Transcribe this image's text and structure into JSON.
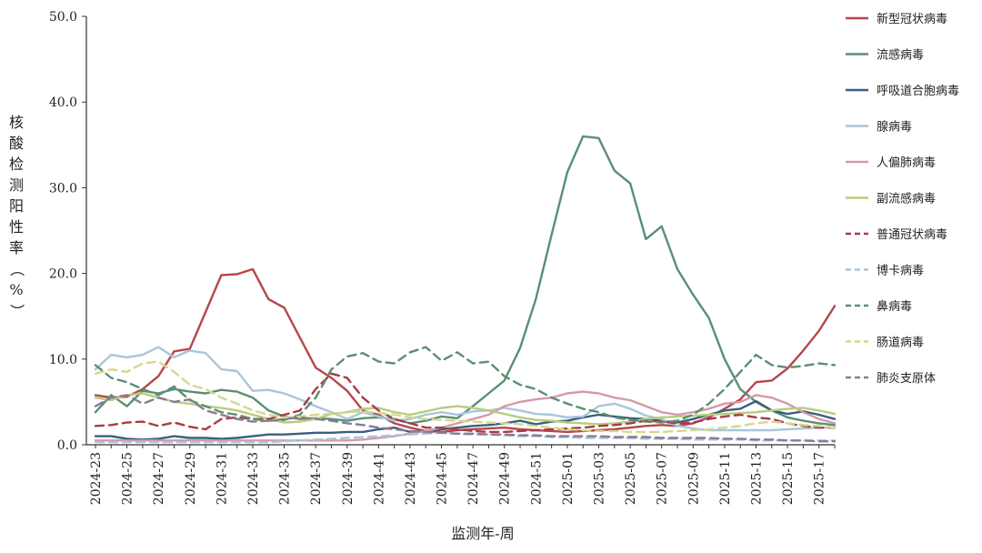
{
  "chart_data": {
    "type": "line",
    "title": "",
    "xlabel": "监测年-周",
    "ylabel": "核酸检测阳性率（%）",
    "ylim": [
      0,
      50
    ],
    "yticks": [
      "0.0",
      "10.0",
      "20.0",
      "30.0",
      "40.0",
      "50.0"
    ],
    "grid": false,
    "legend_position": "right",
    "x": [
      "2024-23",
      "2024-24",
      "2024-25",
      "2024-26",
      "2024-27",
      "2024-28",
      "2024-29",
      "2024-30",
      "2024-31",
      "2024-32",
      "2024-33",
      "2024-34",
      "2024-35",
      "2024-36",
      "2024-37",
      "2024-38",
      "2024-39",
      "2024-40",
      "2024-41",
      "2024-42",
      "2024-43",
      "2024-44",
      "2024-45",
      "2024-46",
      "2024-47",
      "2024-48",
      "2024-49",
      "2024-50",
      "2024-51",
      "2024-52",
      "2025-01",
      "2025-02",
      "2025-03",
      "2025-04",
      "2025-05",
      "2025-06",
      "2025-07",
      "2025-08",
      "2025-09",
      "2025-10",
      "2025-11",
      "2025-12",
      "2025-13",
      "2025-14",
      "2025-15",
      "2025-16",
      "2025-17",
      "2025-18"
    ],
    "x_tick_labels": [
      "2024-23",
      "2024-25",
      "2024-27",
      "2024-29",
      "2024-31",
      "2024-33",
      "2024-35",
      "2024-37",
      "2024-39",
      "2024-41",
      "2024-43",
      "2024-45",
      "2024-47",
      "2024-49",
      "2024-51",
      "2025-01",
      "2025-03",
      "2025-05",
      "2025-07",
      "2025-09",
      "2025-11",
      "2025-13",
      "2025-15",
      "2025-17"
    ],
    "series": [
      {
        "name": "新型冠状病毒",
        "color": "#b5474b",
        "dash": "solid",
        "values": [
          5.8,
          5.5,
          5.6,
          6.5,
          8.0,
          10.9,
          11.2,
          15.5,
          19.8,
          19.9,
          20.5,
          17.0,
          16.0,
          12.5,
          9.0,
          7.8,
          6.3,
          4.0,
          3.5,
          2.5,
          2.0,
          1.6,
          1.5,
          1.7,
          1.8,
          1.9,
          2.0,
          1.8,
          1.7,
          1.6,
          1.5,
          1.6,
          1.7,
          1.8,
          2.0,
          2.2,
          2.3,
          2.2,
          2.5,
          3.2,
          4.2,
          5.3,
          7.3,
          7.5,
          8.9,
          11.0,
          13.3,
          16.2
        ]
      },
      {
        "name": "流感病毒",
        "color": "#5a8f74",
        "dash": "solid",
        "values": [
          3.8,
          5.8,
          4.5,
          6.3,
          6.0,
          6.5,
          6.2,
          6.0,
          6.4,
          6.2,
          5.5,
          4.0,
          3.3,
          3.0,
          3.1,
          3.0,
          2.8,
          3.1,
          3.2,
          3.0,
          2.5,
          2.8,
          3.3,
          3.1,
          4.5,
          6.0,
          7.5,
          11.3,
          17.0,
          24.5,
          31.8,
          36.0,
          35.8,
          32.0,
          30.5,
          24.0,
          25.5,
          20.5,
          17.5,
          14.8,
          10.0,
          6.5,
          5.0,
          4.0,
          3.2,
          2.8,
          2.5,
          2.3
        ]
      },
      {
        "name": "呼吸道合胞病毒",
        "color": "#3a5f80",
        "dash": "solid",
        "values": [
          1.0,
          1.0,
          0.7,
          0.6,
          0.7,
          1.0,
          0.8,
          0.8,
          0.7,
          0.8,
          1.0,
          1.2,
          1.2,
          1.3,
          1.4,
          1.4,
          1.5,
          1.5,
          1.8,
          2.0,
          1.5,
          1.6,
          1.8,
          2.0,
          2.2,
          2.3,
          2.5,
          2.8,
          2.4,
          2.7,
          2.8,
          3.2,
          3.5,
          3.3,
          3.1,
          3.0,
          2.8,
          2.6,
          3.0,
          3.5,
          4.0,
          4.2,
          5.1,
          4.0,
          3.6,
          3.9,
          3.5,
          3.0
        ]
      },
      {
        "name": "腺病毒",
        "color": "#a9c6dc",
        "dash": "solid",
        "values": [
          8.8,
          10.5,
          10.2,
          10.5,
          11.4,
          10.2,
          11.0,
          10.7,
          8.8,
          8.6,
          6.3,
          6.4,
          6.0,
          5.3,
          4.5,
          3.8,
          3.0,
          3.8,
          3.3,
          2.8,
          3.0,
          3.5,
          3.8,
          3.5,
          3.9,
          4.0,
          4.3,
          4.0,
          3.6,
          3.5,
          3.2,
          3.3,
          4.5,
          4.8,
          4.2,
          3.4,
          3.0,
          2.2,
          1.9,
          1.7,
          1.7,
          1.7,
          1.7,
          1.7,
          1.8,
          1.9,
          2.0,
          2.0
        ]
      },
      {
        "name": "人偏肺病毒",
        "color": "#d39aa8",
        "dash": "solid",
        "values": [
          0.5,
          0.5,
          0.5,
          0.5,
          0.5,
          0.5,
          0.5,
          0.5,
          0.5,
          0.5,
          0.5,
          0.5,
          0.5,
          0.5,
          0.5,
          0.5,
          0.5,
          0.6,
          0.8,
          1.0,
          1.3,
          1.6,
          2.0,
          2.5,
          3.0,
          3.5,
          4.5,
          5.0,
          5.3,
          5.5,
          6.0,
          6.2,
          6.0,
          5.5,
          5.2,
          4.5,
          3.8,
          3.5,
          3.8,
          4.2,
          4.8,
          5.0,
          5.8,
          5.5,
          4.8,
          3.8,
          3.0,
          2.5
        ]
      },
      {
        "name": "副流感病毒",
        "color": "#b9cc7d",
        "dash": "solid",
        "values": [
          5.5,
          5.2,
          5.8,
          6.0,
          5.5,
          5.0,
          4.8,
          4.5,
          4.3,
          4.0,
          3.5,
          3.0,
          2.6,
          2.7,
          3.0,
          3.6,
          3.8,
          4.2,
          4.3,
          3.8,
          3.5,
          3.9,
          4.3,
          4.5,
          4.3,
          4.0,
          3.6,
          3.2,
          2.9,
          2.8,
          2.6,
          2.5,
          2.4,
          2.5,
          2.7,
          3.0,
          3.2,
          3.3,
          3.4,
          3.5,
          3.6,
          3.7,
          3.8,
          4.0,
          4.2,
          4.3,
          4.0,
          3.6
        ]
      },
      {
        "name": "普通冠状病毒",
        "color": "#a83c44",
        "dash": "dashed",
        "values": [
          2.2,
          2.3,
          2.6,
          2.7,
          2.2,
          2.6,
          2.1,
          1.8,
          3.0,
          3.2,
          3.0,
          3.0,
          3.5,
          4.0,
          6.5,
          8.3,
          7.8,
          5.5,
          4.0,
          3.0,
          2.5,
          2.0,
          2.0,
          1.8,
          1.6,
          1.5,
          1.5,
          1.6,
          1.7,
          1.8,
          1.9,
          2.0,
          2.2,
          2.3,
          2.5,
          2.8,
          2.7,
          2.5,
          2.6,
          3.0,
          3.3,
          3.5,
          3.2,
          3.0,
          2.5,
          2.2,
          2.0,
          2.0
        ]
      },
      {
        "name": "博卡病毒",
        "color": "#a9c6dc",
        "dash": "dashed",
        "values": [
          0.3,
          0.3,
          0.3,
          0.3,
          0.3,
          0.3,
          0.3,
          0.3,
          0.3,
          0.3,
          0.3,
          0.3,
          0.4,
          0.5,
          0.6,
          0.7,
          0.8,
          0.9,
          1.0,
          1.1,
          1.2,
          1.3,
          1.4,
          1.3,
          1.2,
          1.2,
          1.1,
          1.0,
          1.0,
          0.9,
          0.9,
          0.8,
          0.8,
          0.8,
          0.8,
          0.7,
          0.7,
          0.7,
          0.6,
          0.6,
          0.6,
          0.6,
          0.5,
          0.5,
          0.5,
          0.5,
          0.5,
          0.5
        ]
      },
      {
        "name": "鼻病毒",
        "color": "#5a8f74",
        "dash": "dashed",
        "values": [
          9.3,
          7.8,
          7.3,
          6.5,
          5.8,
          6.8,
          5.2,
          4.5,
          3.8,
          3.5,
          3.0,
          2.8,
          2.9,
          3.5,
          5.5,
          8.8,
          10.3,
          10.7,
          9.7,
          9.5,
          10.8,
          11.4,
          9.8,
          10.8,
          9.5,
          9.7,
          8.0,
          7.0,
          6.5,
          5.5,
          4.8,
          4.2,
          3.8,
          3.2,
          2.9,
          2.7,
          2.6,
          2.8,
          3.5,
          4.8,
          6.5,
          8.5,
          10.5,
          9.3,
          9.0,
          9.2,
          9.5,
          9.3
        ]
      },
      {
        "name": "肠道病毒",
        "color": "#d5d88a",
        "dash": "dashed",
        "values": [
          8.3,
          8.8,
          8.5,
          9.5,
          9.7,
          8.5,
          7.0,
          6.5,
          5.5,
          4.8,
          4.0,
          3.5,
          3.2,
          3.3,
          3.5,
          3.6,
          3.8,
          3.9,
          3.7,
          3.5,
          3.2,
          3.0,
          2.9,
          2.8,
          2.7,
          2.6,
          2.5,
          2.4,
          2.2,
          2.0,
          1.8,
          1.7,
          1.6,
          1.6,
          1.5,
          1.5,
          1.5,
          1.6,
          1.7,
          1.8,
          2.0,
          2.2,
          2.5,
          2.7,
          2.5,
          2.3,
          2.2,
          2.0
        ]
      },
      {
        "name": "肺炎支原体",
        "color": "#8a7b94",
        "dash": "dashed",
        "values": [
          4.5,
          5.5,
          5.8,
          4.8,
          5.5,
          5.0,
          5.3,
          4.0,
          3.5,
          3.0,
          2.7,
          2.8,
          3.0,
          3.2,
          3.0,
          2.8,
          2.5,
          2.3,
          2.0,
          1.8,
          1.6,
          1.5,
          1.4,
          1.3,
          1.3,
          1.2,
          1.2,
          1.1,
          1.1,
          1.0,
          1.0,
          1.0,
          1.0,
          0.9,
          0.9,
          0.9,
          0.8,
          0.8,
          0.8,
          0.8,
          0.7,
          0.7,
          0.6,
          0.6,
          0.5,
          0.5,
          0.4,
          0.4
        ]
      }
    ]
  }
}
